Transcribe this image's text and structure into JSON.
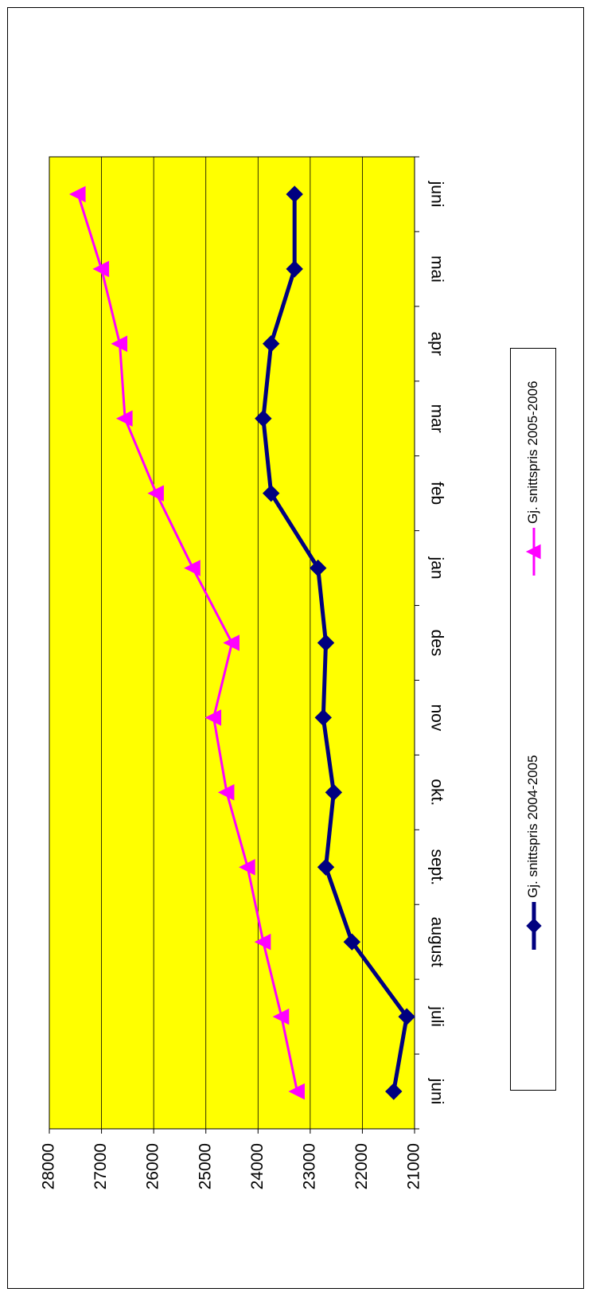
{
  "chart_data": {
    "type": "line",
    "orientation": "rotated-90-clockwise",
    "categories": [
      "juni",
      "juli",
      "august",
      "sept.",
      "okt.",
      "nov",
      "des",
      "jan",
      "feb",
      "mar",
      "apr",
      "mai",
      "juni"
    ],
    "series": [
      {
        "name": "Gj. snittspris 2004-2005",
        "color": "#000080",
        "marker": "diamond",
        "values": [
          21400,
          21150,
          22200,
          22700,
          22550,
          22750,
          22700,
          22850,
          23750,
          23900,
          23750,
          23300,
          23300
        ]
      },
      {
        "name": "Gj. snittspris 2005-2006",
        "color": "#FF00FF",
        "marker": "triangle",
        "values": [
          23250,
          23550,
          23900,
          24200,
          24600,
          24850,
          24500,
          25250,
          25950,
          26550,
          26650,
          27000,
          27450
        ]
      }
    ],
    "yticks": [
      21000,
      22000,
      23000,
      24000,
      25000,
      26000,
      27000,
      28000
    ],
    "ylim": [
      21000,
      28000
    ],
    "grid": true,
    "plot_background": "#FFFF00",
    "legend_position": "right"
  }
}
